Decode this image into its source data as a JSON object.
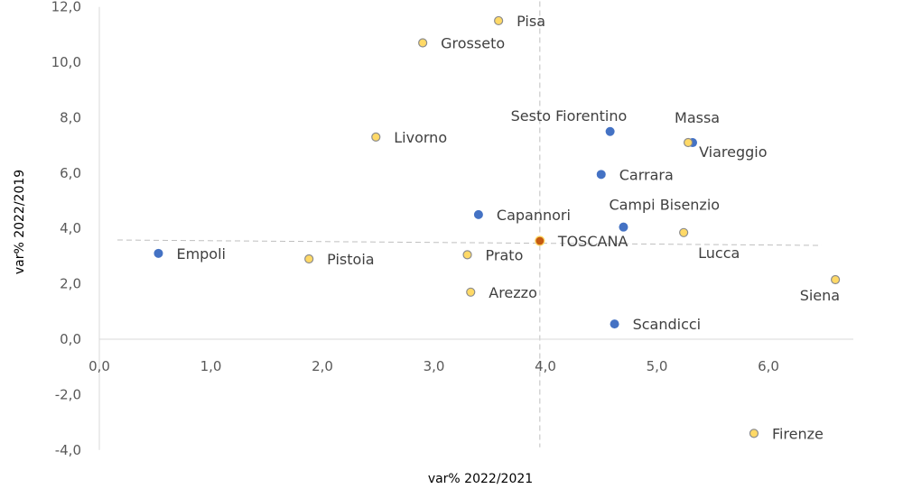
{
  "chart_data": {
    "type": "scatter",
    "title": "",
    "xlabel": "var% 2022/2021",
    "ylabel": "var% 2022/2019",
    "xlim": [
      0,
      6.6
    ],
    "ylim": [
      -4,
      12
    ],
    "x_ticks": [
      "0,0",
      "1,0",
      "2,0",
      "3,0",
      "4,0",
      "5,0",
      "6,0"
    ],
    "y_ticks": [
      "-4,0",
      "-2,0",
      "0,0",
      "2,0",
      "4,0",
      "6,0",
      "8,0",
      "10,0",
      "12,0"
    ],
    "grid": false,
    "reference_lines": {
      "x": 3.95,
      "y": 3.55
    },
    "colors": {
      "blue": "#4472c4",
      "yellow": "#ffd966",
      "yellow_border": "#8c8c8c",
      "toscana": "#c55a11",
      "axis": "#d9d9d9",
      "refline": "#bfbfbf"
    },
    "points": [
      {
        "name": "Pisa",
        "x": 3.58,
        "y": 11.5,
        "color": "yellow"
      },
      {
        "name": "Grosseto",
        "x": 2.9,
        "y": 10.7,
        "color": "yellow"
      },
      {
        "name": "Sesto Fiorentino",
        "x": 4.58,
        "y": 7.5,
        "color": "blue"
      },
      {
        "name": "Massa",
        "x": 5.32,
        "y": 7.1,
        "color": "blue"
      },
      {
        "name": "Viareggio",
        "x": 5.28,
        "y": 7.1,
        "color": "yellow"
      },
      {
        "name": "Livorno",
        "x": 2.48,
        "y": 7.3,
        "color": "yellow"
      },
      {
        "name": "Carrara",
        "x": 4.5,
        "y": 5.95,
        "color": "blue"
      },
      {
        "name": "Capannori",
        "x": 3.4,
        "y": 4.5,
        "color": "blue"
      },
      {
        "name": "Campi Bisenzio",
        "x": 4.7,
        "y": 4.05,
        "color": "blue"
      },
      {
        "name": "Lucca",
        "x": 5.24,
        "y": 3.85,
        "color": "yellow"
      },
      {
        "name": "TOSCANA",
        "x": 3.95,
        "y": 3.55,
        "color": "toscana"
      },
      {
        "name": "Empoli",
        "x": 0.53,
        "y": 3.1,
        "color": "blue"
      },
      {
        "name": "Pistoia",
        "x": 1.88,
        "y": 2.9,
        "color": "yellow"
      },
      {
        "name": "Prato",
        "x": 3.3,
        "y": 3.05,
        "color": "yellow"
      },
      {
        "name": "Arezzo",
        "x": 3.33,
        "y": 1.7,
        "color": "yellow"
      },
      {
        "name": "Siena",
        "x": 6.6,
        "y": 2.15,
        "color": "yellow"
      },
      {
        "name": "Scandicci",
        "x": 4.62,
        "y": 0.55,
        "color": "blue"
      },
      {
        "name": "Firenze",
        "x": 5.87,
        "y": -3.4,
        "color": "yellow"
      }
    ]
  }
}
